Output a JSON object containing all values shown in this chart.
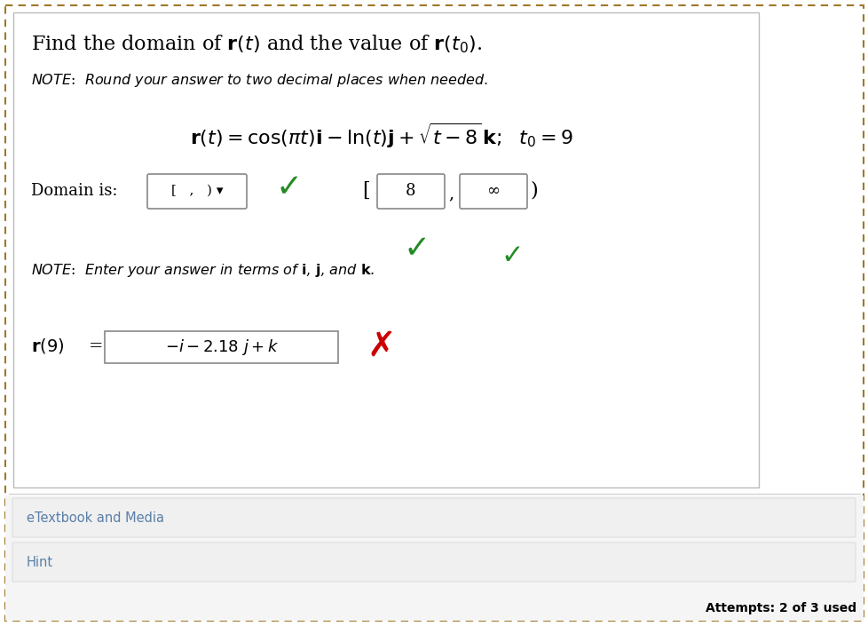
{
  "bg_color": "#ffffff",
  "outer_border_color": "#a0782a",
  "text_color": "#000000",
  "green_color": "#228B22",
  "red_color": "#CC0000",
  "gray_bg": "#f0f0f0",
  "etextbook_color": "#5a7fa8",
  "hint_color": "#5a7fa8",
  "etextbook": "eTextbook and Media",
  "hint": "Hint",
  "attempts": "Attempts: 2 of 3 used",
  "figw": 9.79,
  "figh": 7.05
}
